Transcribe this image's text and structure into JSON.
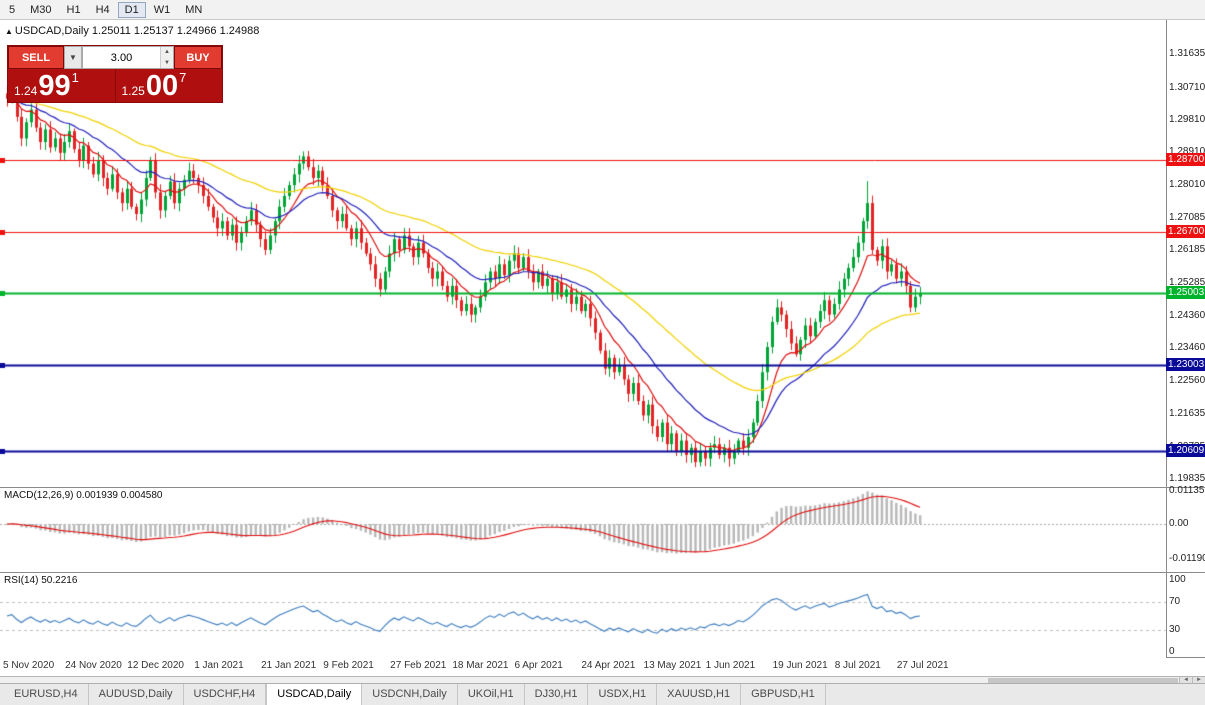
{
  "icons": {
    "chart_marker": "▲",
    "chevron_down": "▼",
    "spin_up": "▲",
    "spin_down": "▼",
    "scroll_left": "◄",
    "scroll_right": "►"
  },
  "toolbar": {
    "timeframes": [
      {
        "label": "5",
        "active": false
      },
      {
        "label": "M30",
        "active": false
      },
      {
        "label": "H1",
        "active": false
      },
      {
        "label": "H4",
        "active": false
      },
      {
        "label": "D1",
        "active": true
      },
      {
        "label": "W1",
        "active": false
      },
      {
        "label": "MN",
        "active": false
      }
    ]
  },
  "chart": {
    "title_text": "USDCAD,Daily 1.25011 1.25137 1.24966 1.24988"
  },
  "trade_panel": {
    "sell_label": "SELL",
    "buy_label": "BUY",
    "volume": "3.00",
    "sell_price_small": "1.24",
    "sell_price_big": "99",
    "sell_price_sup": "1",
    "buy_price_small": "1.25",
    "buy_price_big": "00",
    "buy_price_sup": "7"
  },
  "price_axis": {
    "ticks": [
      "1.31635",
      "1.30710",
      "1.29810",
      "1.28910",
      "1.28010",
      "1.27085",
      "1.26185",
      "1.25285",
      "1.24360",
      "1.23460",
      "1.22560",
      "1.21635",
      "1.20735",
      "1.19835"
    ],
    "badges": [
      {
        "label": "1.28700",
        "price": 1.287,
        "color": "#ee1111"
      },
      {
        "label": "1.26700",
        "price": 1.267,
        "color": "#ee1111"
      },
      {
        "label": "1.25003",
        "price": 1.25003,
        "color": "#00b32c"
      },
      {
        "label": "1.23003",
        "price": 1.23003,
        "color": "#0a0a99"
      },
      {
        "label": "1.20609",
        "price": 1.20609,
        "color": "#0a0a99"
      }
    ]
  },
  "macd_panel": {
    "label": "MACD(12,26,9) 0.001939 0.004580",
    "ticks": [
      {
        "label": "0.01135",
        "value": 0.01135
      },
      {
        "label": "0.00",
        "value": 0
      },
      {
        "label": "-0.01190",
        "value": -0.0119
      }
    ]
  },
  "rsi_panel": {
    "label": "RSI(14) 50.2216",
    "ticks": [
      {
        "label": "100",
        "value": 100
      },
      {
        "label": "70",
        "value": 70
      },
      {
        "label": "30",
        "value": 30
      },
      {
        "label": "0",
        "value": 0
      }
    ],
    "levels": [
      70,
      30
    ]
  },
  "date_axis": [
    {
      "label": "5 Nov 2020",
      "index": 0
    },
    {
      "label": "24 Nov 2020",
      "index": 13
    },
    {
      "label": "12 Dec 2020",
      "index": 26
    },
    {
      "label": "1 Jan 2021",
      "index": 40
    },
    {
      "label": "21 Jan 2021",
      "index": 54
    },
    {
      "label": "9 Feb 2021",
      "index": 67
    },
    {
      "label": "27 Feb 2021",
      "index": 81
    },
    {
      "label": "18 Mar 2021",
      "index": 94
    },
    {
      "label": "6 Apr 2021",
      "index": 107
    },
    {
      "label": "24 Apr 2021",
      "index": 121
    },
    {
      "label": "13 May 2021",
      "index": 134
    },
    {
      "label": "1 Jun 2021",
      "index": 147
    },
    {
      "label": "19 Jun 2021",
      "index": 161
    },
    {
      "label": "8 Jul 2021",
      "index": 174
    },
    {
      "label": "27 Jul 2021",
      "index": 187
    }
  ],
  "tabs": [
    {
      "label": "EURUSD,H4",
      "active": false
    },
    {
      "label": "AUDUSD,Daily",
      "active": false
    },
    {
      "label": "USDCHF,H4",
      "active": false
    },
    {
      "label": "USDCAD,Daily",
      "active": true
    },
    {
      "label": "USDCNH,Daily",
      "active": false
    },
    {
      "label": "UKOil,H1",
      "active": false
    },
    {
      "label": "DJ30,H1",
      "active": false
    },
    {
      "label": "USDX,H1",
      "active": false
    },
    {
      "label": "XAUUSD,H1",
      "active": false
    },
    {
      "label": "GBPUSD,H1",
      "active": false
    }
  ],
  "chart_data": {
    "type": "candlestick",
    "symbol": "USDCAD",
    "timeframe": "Daily",
    "quote": {
      "open": 1.25011,
      "high": 1.25137,
      "low": 1.24966,
      "close": 1.24988,
      "bid": 1.24991,
      "ask": 1.25007
    },
    "price_range_shown": [
      1.19835,
      1.31635
    ],
    "horizontal_levels": [
      1.287,
      1.267,
      1.25003,
      1.23003,
      1.20609
    ],
    "closes": [
      1.304,
      1.306,
      1.299,
      1.293,
      1.2975,
      1.301,
      1.296,
      1.292,
      1.2955,
      1.2905,
      1.293,
      1.289,
      1.292,
      1.295,
      1.29,
      1.287,
      1.291,
      1.286,
      1.283,
      1.287,
      1.282,
      1.279,
      1.283,
      1.278,
      1.275,
      1.279,
      1.274,
      1.272,
      1.276,
      1.282,
      1.287,
      1.278,
      1.273,
      1.277,
      1.281,
      1.275,
      1.279,
      1.2815,
      1.284,
      1.282,
      1.28,
      1.277,
      1.274,
      1.271,
      1.268,
      1.27,
      1.266,
      1.269,
      1.264,
      1.267,
      1.27,
      1.273,
      1.269,
      1.265,
      1.262,
      1.266,
      1.27,
      1.274,
      1.277,
      1.28,
      1.283,
      1.286,
      1.288,
      1.285,
      1.282,
      1.284,
      1.28,
      1.277,
      1.273,
      1.27,
      1.272,
      1.268,
      1.265,
      1.268,
      1.264,
      1.261,
      1.258,
      1.254,
      1.251,
      1.256,
      1.261,
      1.265,
      1.262,
      1.266,
      1.263,
      1.26,
      1.264,
      1.261,
      1.257,
      1.254,
      1.256,
      1.252,
      1.249,
      1.252,
      1.248,
      1.245,
      1.247,
      1.244,
      1.246,
      1.249,
      1.253,
      1.256,
      1.254,
      1.258,
      1.255,
      1.259,
      1.261,
      1.257,
      1.26,
      1.256,
      1.253,
      1.256,
      1.252,
      1.254,
      1.25,
      1.253,
      1.249,
      1.251,
      1.247,
      1.249,
      1.245,
      1.247,
      1.243,
      1.239,
      1.234,
      1.229,
      1.232,
      1.228,
      1.23,
      1.226,
      1.222,
      1.225,
      1.22,
      1.216,
      1.219,
      1.213,
      1.21,
      1.214,
      1.208,
      1.211,
      1.206,
      1.209,
      1.205,
      1.207,
      1.203,
      1.206,
      1.204,
      1.207,
      1.208,
      1.205,
      1.207,
      1.204,
      1.206,
      1.209,
      1.207,
      1.21,
      1.214,
      1.22,
      1.228,
      1.235,
      1.242,
      1.246,
      1.244,
      1.24,
      1.236,
      1.233,
      1.237,
      1.241,
      1.238,
      1.242,
      1.245,
      1.248,
      1.244,
      1.247,
      1.251,
      1.254,
      1.257,
      1.26,
      1.264,
      1.27,
      1.275,
      1.262,
      1.259,
      1.263,
      1.256,
      1.258,
      1.254,
      1.256,
      1.252,
      1.246,
      1.249,
      1.24988
    ],
    "moving_averages": [
      {
        "period": 9,
        "color": "#dd1111"
      },
      {
        "period": 21,
        "color": "#2222bb"
      },
      {
        "period": 50,
        "color": "#f2d200"
      }
    ],
    "macd": {
      "fast": 12,
      "slow": 26,
      "signal": 9,
      "current": 0.001939,
      "current_signal": 0.00458
    },
    "rsi": {
      "period": 14,
      "current": 50.2216
    }
  }
}
